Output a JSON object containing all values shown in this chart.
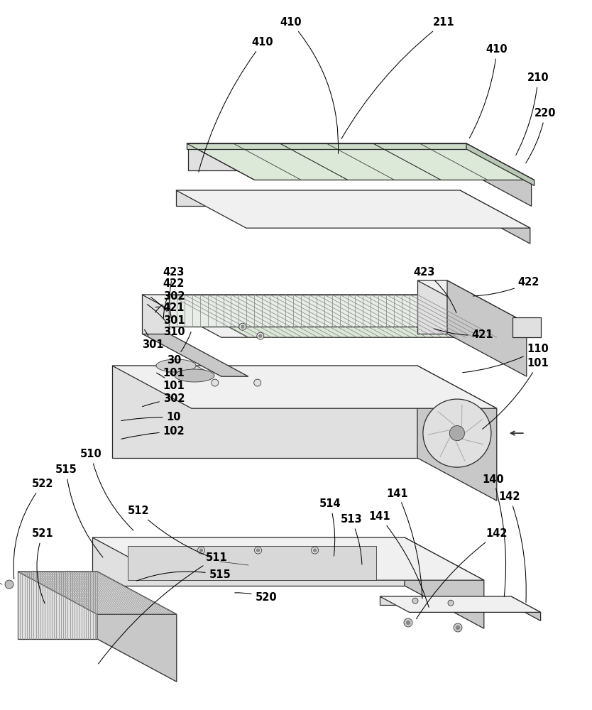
{
  "bg": "#ffffff",
  "lc": "#2a2a2a",
  "fill_top": "#f0f0f0",
  "fill_front": "#e0e0e0",
  "fill_right": "#c8c8c8",
  "fill_green_top": "#dce8d8",
  "fill_green_front": "#ccdcc8",
  "fill_green_right": "#b8c8b4",
  "fill_dark": "#b0b0b0",
  "lw": 0.9,
  "lw_thin": 0.55,
  "lw_label": 0.75
}
